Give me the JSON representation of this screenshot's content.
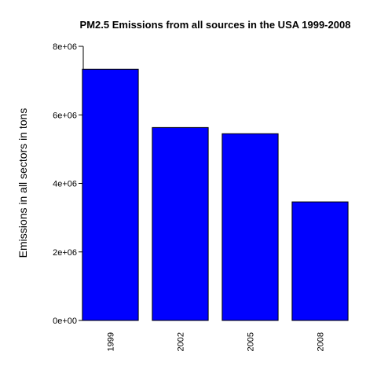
{
  "chart_data": {
    "type": "bar",
    "title": "PM2.5 Emissions from all sources in the USA 1999-2008",
    "xlabel": "",
    "ylabel": "Emissions in all sectors in tons",
    "categories": [
      "1999",
      "2002",
      "2005",
      "2008"
    ],
    "values": [
      7330000,
      5630000,
      5450000,
      3460000
    ],
    "ylim": [
      0,
      8000000
    ],
    "yticks": [
      0,
      2000000,
      4000000,
      6000000,
      8000000
    ],
    "ytick_labels": [
      "0e+00",
      "2e+06",
      "4e+06",
      "6e+06",
      "8e+06"
    ],
    "bar_color": "#0000ff",
    "grid": false,
    "legend": "none"
  }
}
